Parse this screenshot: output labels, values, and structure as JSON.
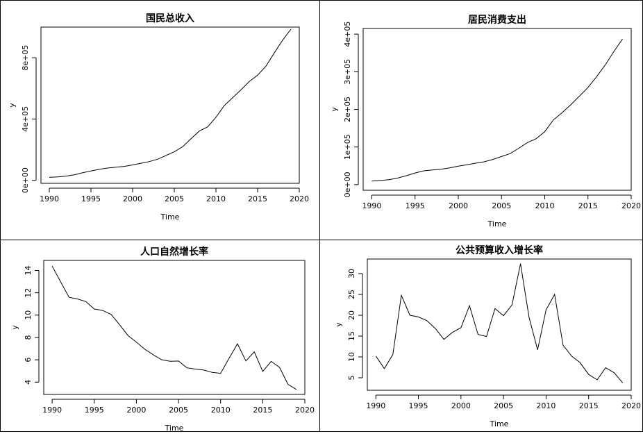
{
  "chart_data": [
    {
      "type": "line",
      "title": "国民总收入",
      "xlabel": "Time",
      "ylabel": "y",
      "x_ticks": [
        1990,
        1995,
        2000,
        2005,
        2010,
        2015,
        2020
      ],
      "y_ticks": [
        0,
        400000,
        800000
      ],
      "y_tick_labels": [
        "0e+00",
        "4e+05",
        "8e+05"
      ],
      "xlim": [
        1989,
        2020
      ],
      "ylim": [
        -20000,
        1000000
      ],
      "x": [
        1990,
        1991,
        1992,
        1993,
        1994,
        1995,
        1996,
        1997,
        1998,
        1999,
        2000,
        2001,
        2002,
        2003,
        2004,
        2005,
        2006,
        2007,
        2008,
        2009,
        2010,
        2011,
        2012,
        2013,
        2014,
        2015,
        2016,
        2017,
        2018,
        2019
      ],
      "values": [
        18900,
        22000,
        27200,
        35800,
        48800,
        60400,
        71800,
        79700,
        85200,
        90600,
        100300,
        110900,
        121700,
        137400,
        161800,
        185900,
        219000,
        270800,
        321500,
        348500,
        411300,
        487900,
        538600,
        590400,
        644800,
        686300,
        745000,
        831400,
        914700,
        986500
      ]
    },
    {
      "type": "line",
      "title": "居民消费支出",
      "xlabel": "Time",
      "ylabel": "y",
      "x_ticks": [
        1990,
        1995,
        2000,
        2005,
        2010,
        2015,
        2020
      ],
      "y_ticks": [
        0,
        100000,
        200000,
        300000,
        400000
      ],
      "y_tick_labels": [
        "0e+00",
        "1e+05",
        "2e+05",
        "3e+05",
        "4e+05"
      ],
      "xlim": [
        1989,
        2020
      ],
      "ylim": [
        -15000,
        415000
      ],
      "x": [
        1990,
        1991,
        1992,
        1993,
        1994,
        1995,
        1996,
        1997,
        1998,
        1999,
        2000,
        2001,
        2002,
        2003,
        2004,
        2005,
        2006,
        2007,
        2008,
        2009,
        2010,
        2011,
        2012,
        2013,
        2014,
        2015,
        2016,
        2017,
        2018,
        2019
      ],
      "values": [
        9500,
        11000,
        13000,
        17500,
        23800,
        31000,
        36700,
        39000,
        41000,
        44600,
        49000,
        53000,
        57000,
        60700,
        67000,
        74600,
        82500,
        96600,
        111700,
        122000,
        140800,
        172000,
        191000,
        212000,
        235000,
        258000,
        287000,
        318000,
        354000,
        387000
      ]
    },
    {
      "type": "line",
      "title": "人口自然增长率",
      "xlabel": "Time",
      "ylabel": "y",
      "x_ticks": [
        1990,
        1995,
        2000,
        2005,
        2010,
        2015,
        2020
      ],
      "y_ticks": [
        4,
        6,
        8,
        10,
        12,
        14
      ],
      "y_tick_labels": [
        "4",
        "6",
        "8",
        "10",
        "12",
        "14"
      ],
      "xlim": [
        1989,
        2020
      ],
      "ylim": [
        2.9,
        14.9
      ],
      "x": [
        1990,
        1991,
        1992,
        1993,
        1994,
        1995,
        1996,
        1997,
        1998,
        1999,
        2000,
        2001,
        2002,
        2003,
        2004,
        2005,
        2006,
        2007,
        2008,
        2009,
        2010,
        2011,
        2012,
        2013,
        2014,
        2015,
        2016,
        2017,
        2018,
        2019
      ],
      "values": [
        14.39,
        12.98,
        11.6,
        11.45,
        11.21,
        10.55,
        10.42,
        10.06,
        9.14,
        8.18,
        7.58,
        6.95,
        6.45,
        6.01,
        5.87,
        5.89,
        5.28,
        5.17,
        5.08,
        4.87,
        4.79,
        6.13,
        7.43,
        5.9,
        6.71,
        4.96,
        5.86,
        5.32,
        3.81,
        3.34
      ]
    },
    {
      "type": "line",
      "title": "公共预算收入增长率",
      "xlabel": "Time",
      "ylabel": "y",
      "x_ticks": [
        1990,
        1995,
        2000,
        2005,
        2010,
        2015,
        2020
      ],
      "y_ticks": [
        5,
        10,
        15,
        20,
        25,
        30
      ],
      "y_tick_labels": [
        "5",
        "10",
        "15",
        "20",
        "25",
        "30"
      ],
      "xlim": [
        1989,
        2020
      ],
      "ylim": [
        2.0,
        33.5
      ],
      "x": [
        1990,
        1991,
        1992,
        1993,
        1994,
        1995,
        1996,
        1997,
        1998,
        1999,
        2000,
        2001,
        2002,
        2003,
        2004,
        2005,
        2006,
        2007,
        2008,
        2009,
        2010,
        2011,
        2012,
        2013,
        2014,
        2015,
        2016,
        2017,
        2018,
        2019
      ],
      "values": [
        10.2,
        7.2,
        10.6,
        24.8,
        20.0,
        19.6,
        18.7,
        16.8,
        14.2,
        15.9,
        17.0,
        22.3,
        15.4,
        14.9,
        21.6,
        19.9,
        22.5,
        32.4,
        19.5,
        11.7,
        21.3,
        25.0,
        12.8,
        10.2,
        8.6,
        5.8,
        4.5,
        7.4,
        6.2,
        3.8
      ]
    }
  ]
}
